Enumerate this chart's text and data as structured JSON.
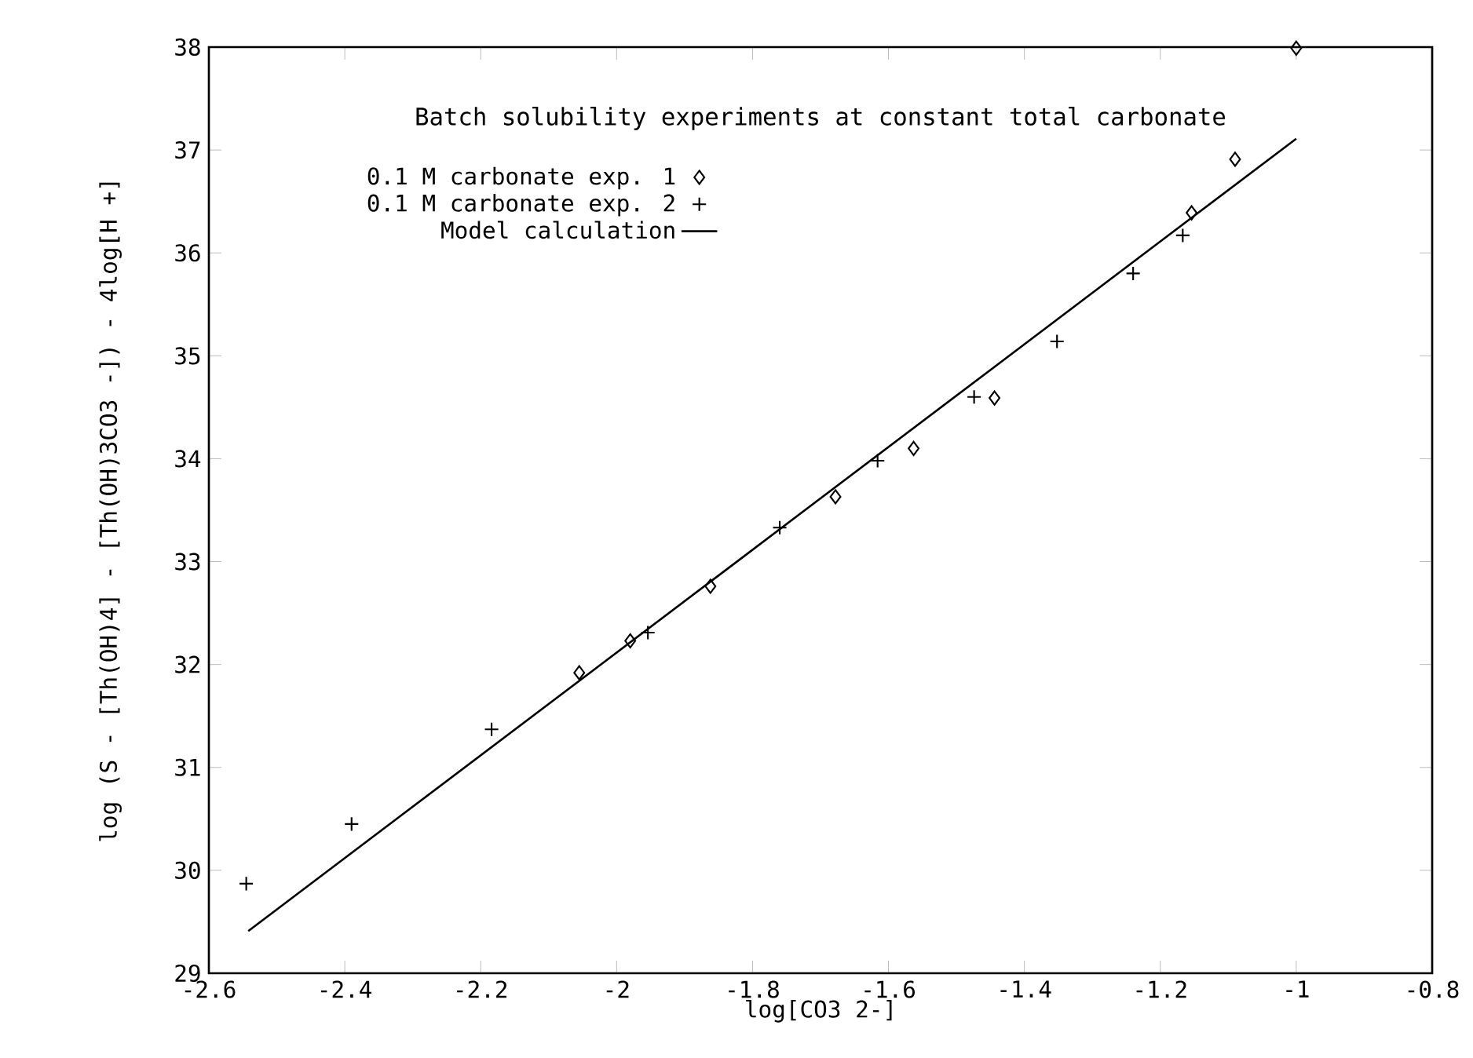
{
  "chart_data": {
    "type": "scatter",
    "title": "Batch solubility experiments at constant total carbonate",
    "xlabel": "log[CO3 2-]",
    "ylabel": "log (S - [Th(OH)4] - [Th(OH)3CO3 -]) - 4log[H +]",
    "xlim": [
      -2.6,
      -0.8
    ],
    "xticks": [
      -2.6,
      -2.4,
      -2.2,
      -2,
      -1.8,
      -1.6,
      -1.4,
      -1.2,
      -1,
      -0.8
    ],
    "ylim": [
      29,
      38
    ],
    "yticks": [
      29,
      30,
      31,
      32,
      33,
      34,
      35,
      36,
      37,
      38
    ],
    "grid": false,
    "legend": "top left",
    "series": [
      {
        "name": "0.1 M carbonate exp. 1",
        "color": "#000000",
        "marker": "diamond",
        "x": [
          -2.055,
          -1.98,
          -1.862,
          -1.678,
          -1.563,
          -1.444,
          -1.154,
          -1.09,
          -1.0
        ],
        "values": [
          31.92,
          32.23,
          32.76,
          33.63,
          34.1,
          34.59,
          36.39,
          36.91,
          37.99
        ]
      },
      {
        "name": "0.1 M carbonate exp. 2",
        "color": "#000000",
        "marker": "cross",
        "x": [
          -2.545,
          -2.39,
          -2.184,
          -1.954,
          -1.76,
          -1.616,
          -1.474,
          -1.352,
          -1.24,
          -1.167
        ],
        "values": [
          29.87,
          30.45,
          31.37,
          32.31,
          33.33,
          33.98,
          34.6,
          35.14,
          35.8,
          36.17
        ]
      },
      {
        "name": "Model calculation",
        "color": "#000000",
        "type": "line",
        "marker": "none",
        "line_style": "solid",
        "x": [
          -2.542,
          -1.825,
          -1.0
        ],
        "values": [
          29.41,
          32.99,
          37.11
        ]
      }
    ]
  }
}
